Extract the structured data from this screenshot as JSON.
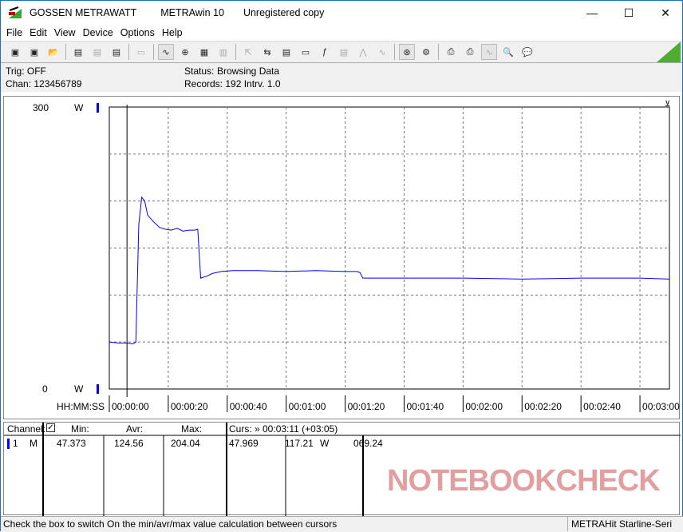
{
  "window": {
    "title_brand": "GOSSEN METRAWATT",
    "title_app": "METRAwin 10",
    "title_note": "Unregistered copy",
    "minimize": "—",
    "maximize": "☐",
    "close": "✕"
  },
  "menu": [
    "File",
    "Edit",
    "View",
    "Device",
    "Options",
    "Help"
  ],
  "toolbar_icons": [
    "save-icon",
    "save-as-icon",
    "open-icon",
    "device-read-icon",
    "device-read-disabled-icon",
    "memory-read-icon",
    "display-icon",
    "waveform-icon",
    "crosshair-icon",
    "table-icon",
    "histogram-icon",
    "export-icon",
    "transfer-icon",
    "data-list-icon",
    "monitor-icon",
    "function-icon",
    "device-display-icon",
    "pulse-icon",
    "wave-icon",
    "zoom-fit-icon",
    "settings-icon",
    "print-icon",
    "print-preview-icon",
    "zoom-wave-icon",
    "zoom-search-icon",
    "comment-icon"
  ],
  "info": {
    "trig": "Trig: OFF",
    "chan": "Chan:  123456789",
    "status_label": "Status:",
    "status_value": "Browsing Data",
    "records": "Records: 192  Intrv. 1.0"
  },
  "chart_data": {
    "type": "line",
    "ylim": [
      0,
      300
    ],
    "y_ticks": [
      "300",
      "0"
    ],
    "y_unit": "W",
    "xlabel": "HH:MM:SS",
    "x_ticks": [
      "00:00:00",
      "00:00:20",
      "00:00:40",
      "00:01:00",
      "00:01:20",
      "00:01:40",
      "00:02:00",
      "00:02:20",
      "00:02:40",
      "00:03:00"
    ],
    "xlim": [
      "00:00:00",
      "00:03:10"
    ],
    "grid": true,
    "line_color": "#0000ff",
    "cursor_time": "00:00:06",
    "series": [
      {
        "x": [
          "00:00:00",
          "00:00:03",
          "00:00:06",
          "00:00:08",
          "00:00:09",
          "00:00:10",
          "00:00:11",
          "00:00:12",
          "00:00:13",
          "00:00:15",
          "00:00:17",
          "00:00:19",
          "00:00:21",
          "00:00:23",
          "00:00:25",
          "00:00:27",
          "00:00:29",
          "00:00:30",
          "00:00:31",
          "00:00:33",
          "00:00:35",
          "00:00:38",
          "00:00:42",
          "00:00:50",
          "00:01:00",
          "00:01:10",
          "00:01:20",
          "00:01:24",
          "00:01:25",
          "00:01:26",
          "00:01:40",
          "00:02:00",
          "00:02:20",
          "00:02:40",
          "00:03:00",
          "00:03:10"
        ],
        "y": [
          50,
          49,
          49,
          48,
          50,
          175,
          204,
          200,
          185,
          178,
          172,
          170,
          169,
          171,
          168,
          169,
          169,
          170,
          118,
          120,
          123,
          125,
          126,
          126,
          125,
          126,
          125,
          125,
          124,
          118,
          118,
          118,
          117,
          118,
          118,
          117
        ]
      }
    ]
  },
  "panel": {
    "channel_header": "Channel:",
    "checkbox_checked": true,
    "min_header": "Min:",
    "avr_header": "Avr:",
    "max_header": "Max:",
    "cursor_header": "Curs: » 00:03:11 (+03:05)",
    "row": {
      "num": "1",
      "type": "M",
      "min": "47.373",
      "avr": "124.56",
      "max": "204.04",
      "curs1": "47.969",
      "curs2": "117.21",
      "unit": "W",
      "curs3": "069.24",
      "color": "#0000ff"
    }
  },
  "watermark": "NOTEBOOKCHECK",
  "statusbar": {
    "hint": "Check the box to switch On the min/avr/max value calculation between cursors",
    "device": "METRAHit Starline-Seri"
  }
}
